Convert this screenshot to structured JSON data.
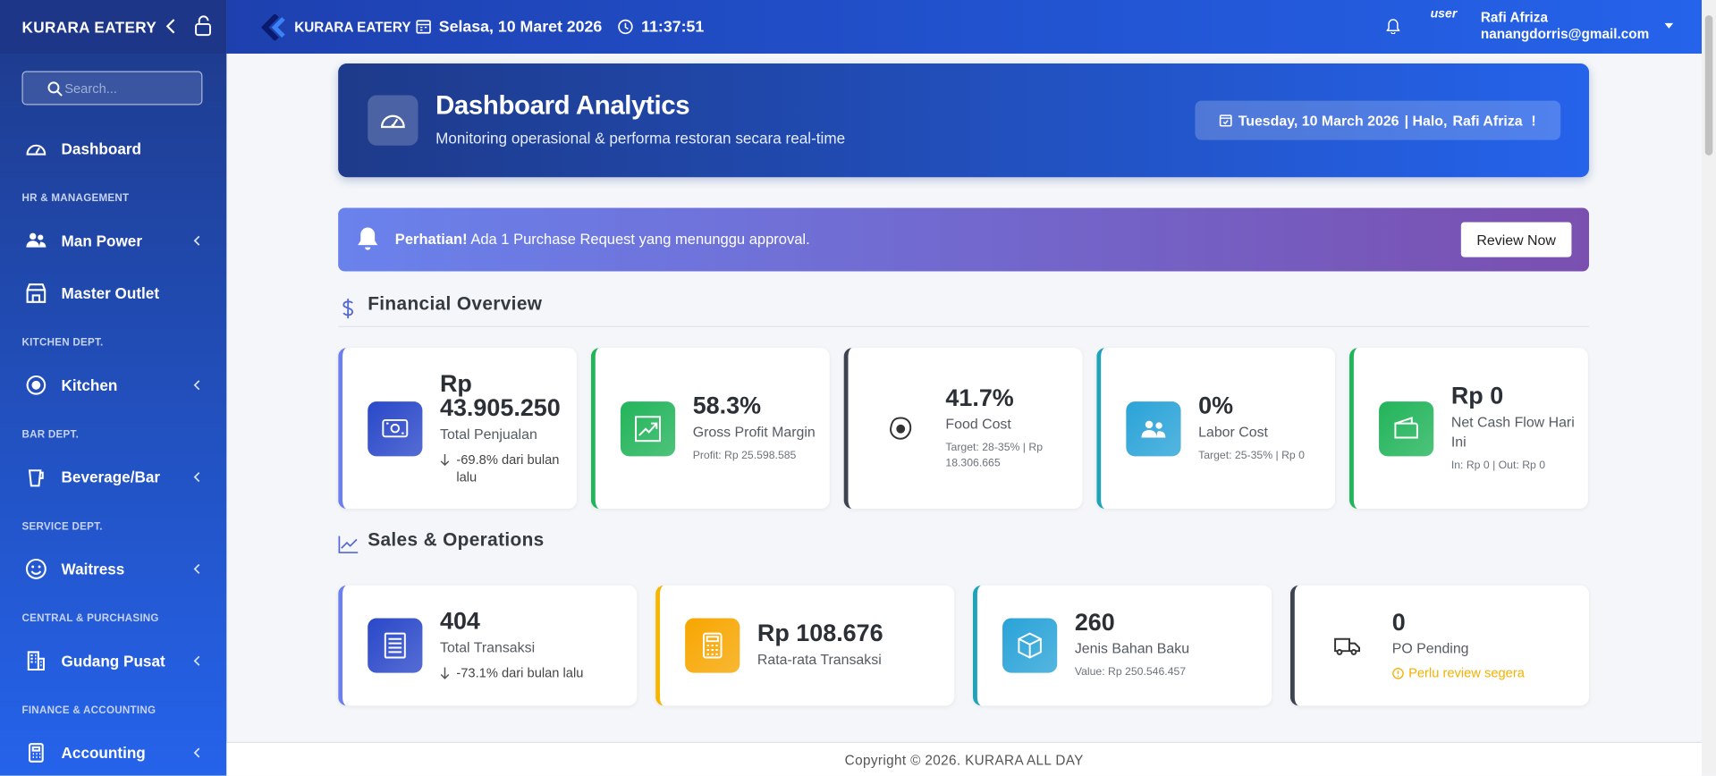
{
  "sidebar": {
    "brand": "KURARA EATERY",
    "search_placeholder": "Search...",
    "menu": [
      {
        "label": "Dashboard"
      },
      {
        "heading": "HR & MANAGEMENT",
        "label": "Man Power",
        "submenu": true
      },
      {
        "label": "Master Outlet"
      },
      {
        "heading": "KITCHEN DEPT.",
        "label": "Kitchen",
        "submenu": true
      },
      {
        "heading": "BAR DEPT.",
        "label": "Beverage/Bar",
        "submenu": true
      },
      {
        "heading": "SERVICE DEPT.",
        "label": "Waitress",
        "submenu": true
      },
      {
        "heading": "CENTRAL & PURCHASING",
        "label": "Gudang Pusat",
        "submenu": true
      },
      {
        "heading": "FINANCE & ACCOUNTING",
        "label": "Accounting",
        "submenu": true
      }
    ]
  },
  "topbar": {
    "brand": "KURARA EATERY",
    "date": "Selasa, 10 Maret 2026",
    "time": "11:37:51",
    "user": {
      "avatar_alt": "user",
      "name": "Rafi Afriza",
      "email": "nanangdorris@gmail.com"
    }
  },
  "hero": {
    "title": "Dashboard Analytics",
    "subtitle": "Monitoring operasional & performa restoran secara real-time",
    "date": "Tuesday, 10 March 2026",
    "greeting": "| Halo,",
    "name": "Rafi Afriza",
    "exclaim": "!"
  },
  "alert": {
    "strong": "Perhatian!",
    "text": "Ada 1 Purchase Request yang menunggu approval.",
    "button": "Review Now"
  },
  "financial": {
    "title": "Financial Overview",
    "cards": [
      {
        "value": "Rp 43.905.250",
        "label": "Total Penjualan",
        "trend": "-69.8% dari bulan lalu",
        "color": "#6b7ff0",
        "icon_color": "#2a48c9"
      },
      {
        "value": "58.3%",
        "label": "Gross Profit Margin",
        "note": "Profit: Rp 25.598.585",
        "color": "#22b45a",
        "icon_color": "#22b45a"
      },
      {
        "value": "41.7%",
        "label": "Food Cost",
        "note": "Target: 28-35% | Rp 18.306.665",
        "color": "#3d4450"
      },
      {
        "value": "0%",
        "label": "Labor Cost",
        "note": "Target: 25-35% | Rp 0",
        "color": "#1fa3b8",
        "icon_color": "#2aa3d8"
      },
      {
        "value": "Rp 0",
        "label": "Net Cash Flow Hari Ini",
        "note": "In: Rp 0 | Out: Rp 0",
        "color": "#22b45a",
        "icon_color": "#22b45a"
      }
    ]
  },
  "sales": {
    "title": "Sales & Operations",
    "cards": [
      {
        "value": "404",
        "label": "Total Transaksi",
        "trend": "-73.1% dari bulan lalu",
        "color": "#6b7ff0",
        "icon_color": "#2a48c9"
      },
      {
        "value": "Rp 108.676",
        "label": "Rata-rata Transaksi",
        "color": "#f7b500",
        "icon_color": "#f7a600"
      },
      {
        "value": "260",
        "label": "Jenis Bahan Baku",
        "note": "Value: Rp 250.546.457",
        "color": "#1fa3b8",
        "icon_color": "#2aa3d8"
      },
      {
        "value": "0",
        "label": "PO Pending",
        "warning": "Perlu review segera",
        "color": "#3d4450"
      }
    ]
  },
  "footer": {
    "text": "Copyright © 2026. KURARA ALL DAY"
  }
}
